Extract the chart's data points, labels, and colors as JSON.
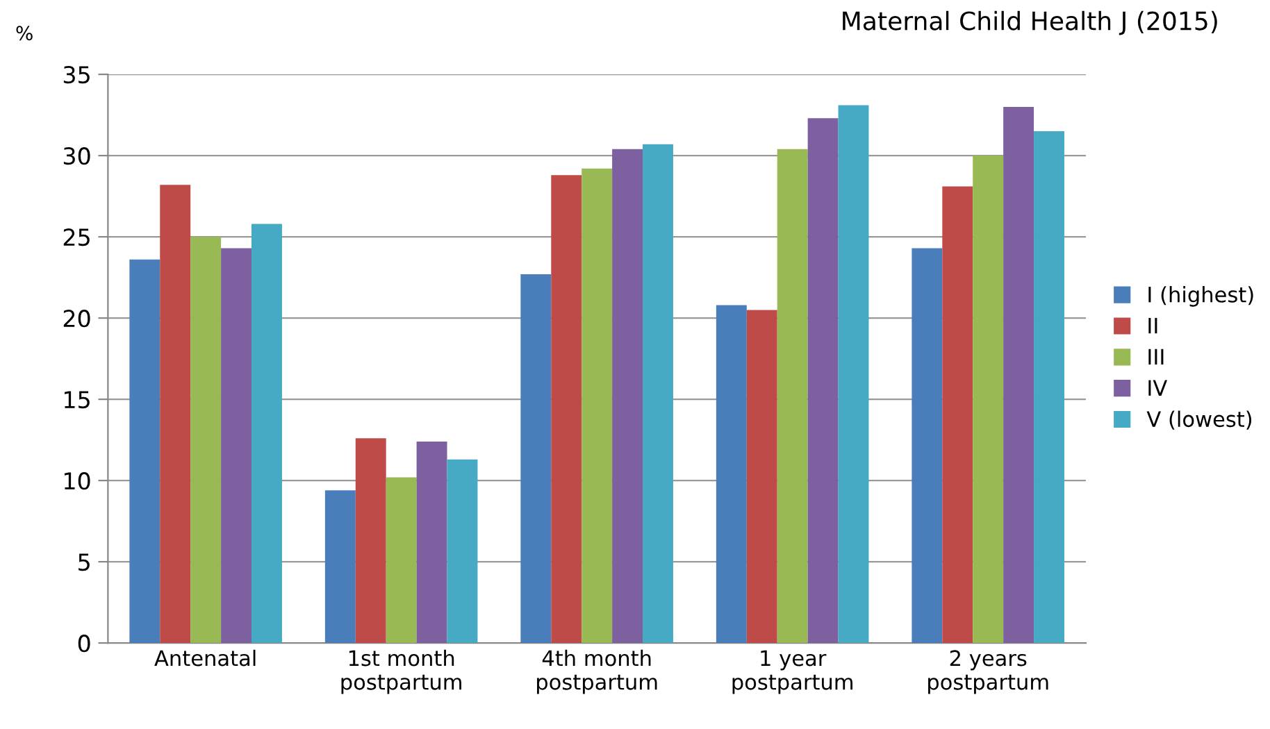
{
  "chart_data": {
    "type": "bar",
    "ylabel": "%",
    "annotations": [
      "Maternal Child Health J (2015)"
    ],
    "categories": [
      "Antenatal",
      "1st month\npostpartum",
      "4th month\npostpartum",
      "1 year\npostpartum",
      "2 years\npostpartum"
    ],
    "series": [
      {
        "name": "I (highest)",
        "color": "#4a7ebb",
        "values": [
          23.6,
          9.4,
          22.7,
          20.8,
          24.3
        ]
      },
      {
        "name": "II",
        "color": "#be4b48",
        "values": [
          28.2,
          12.6,
          28.8,
          20.5,
          28.1
        ]
      },
      {
        "name": "III",
        "color": "#98b954",
        "values": [
          25.0,
          10.2,
          29.2,
          30.4,
          30.0
        ]
      },
      {
        "name": "IV",
        "color": "#7d60a0",
        "values": [
          24.3,
          12.4,
          30.4,
          32.3,
          33.0
        ]
      },
      {
        "name": "V (lowest)",
        "color": "#46aac5",
        "values": [
          25.8,
          11.3,
          30.7,
          33.1,
          31.5
        ]
      }
    ],
    "ylim": [
      0,
      35
    ],
    "yticks": [
      0,
      5,
      10,
      15,
      20,
      25,
      30,
      35
    ],
    "grid": "y",
    "legend": "right"
  }
}
